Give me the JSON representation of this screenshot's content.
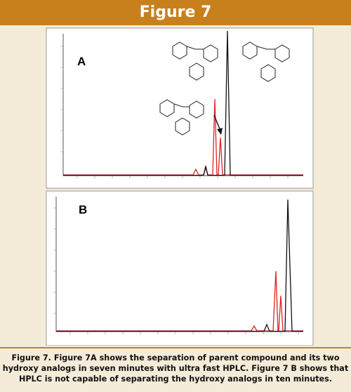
{
  "header": {
    "title": "Figure 7"
  },
  "panels": [
    {
      "label": "A"
    },
    {
      "label": "B"
    }
  ],
  "caption": {
    "lines": [
      "Figure 7. Figure 7A shows the separation of parent compound and its two",
      "hydroxy analogs in seven minutes with ultra fast HPLC.  Figure 7 B shows that",
      "HPLC is not capable of separating the hydroxy analogs in ten minutes."
    ]
  }
}
